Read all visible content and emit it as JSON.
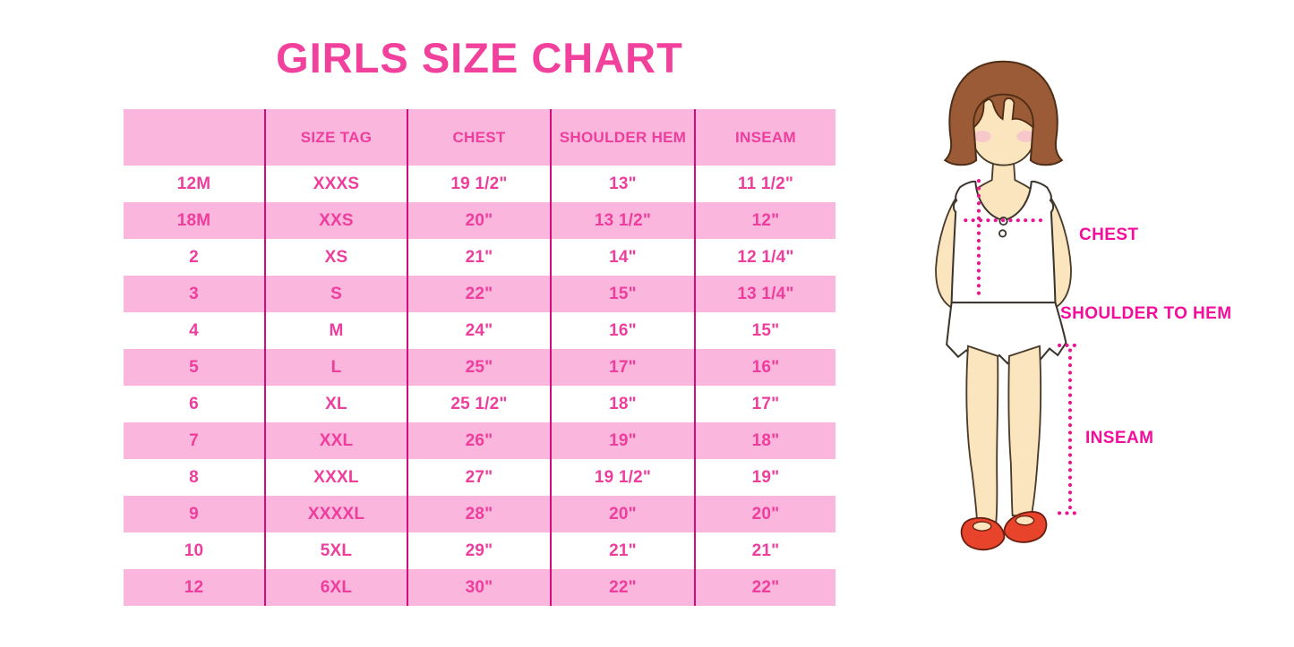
{
  "title": "GIRLS SIZE CHART",
  "colors": {
    "title_pink": "#F2419C",
    "row_pink": "#FAB6DC",
    "cell_text": "#EE3E9D",
    "grid_line": "#D40A7E",
    "label_text": "#F30D9B",
    "dotted_line": "#ED1390",
    "hair_brown": "#9A5B36",
    "skin_tan": "#FBE5BE",
    "shoe_red": "#E8432B"
  },
  "chart_data": {
    "type": "table",
    "title": "GIRLS SIZE CHART",
    "columns": [
      "",
      "SIZE TAG",
      "CHEST",
      "SHOULDER HEM",
      "INSEAM"
    ],
    "rows": [
      [
        "12M",
        "XXXS",
        "19 1/2\"",
        "13\"",
        "11 1/2\""
      ],
      [
        "18M",
        "XXS",
        "20\"",
        "13 1/2\"",
        "12\""
      ],
      [
        "2",
        "XS",
        "21\"",
        "14\"",
        "12 1/4\""
      ],
      [
        "3",
        "S",
        "22\"",
        "15\"",
        "13 1/4\""
      ],
      [
        "4",
        "M",
        "24\"",
        "16\"",
        "15\""
      ],
      [
        "5",
        "L",
        "25\"",
        "17\"",
        "16\""
      ],
      [
        "6",
        "XL",
        "25 1/2\"",
        "18\"",
        "17\""
      ],
      [
        "7",
        "XXL",
        "26\"",
        "19\"",
        "18\""
      ],
      [
        "8",
        "XXXL",
        "27\"",
        "19 1/2\"",
        "19\""
      ],
      [
        "9",
        "XXXXL",
        "28\"",
        "20\"",
        "20\""
      ],
      [
        "10",
        "5XL",
        "29\"",
        "21\"",
        "21\""
      ],
      [
        "12",
        "6XL",
        "30\"",
        "22\"",
        "22\""
      ]
    ],
    "layout": {
      "stripe_pattern": "white/pink alternating, header pink",
      "grid": "vertical magenta dividers only"
    }
  },
  "figure": {
    "labels": {
      "chest": "CHEST",
      "shoulder_to_hem": "SHOULDER TO HEM",
      "inseam": "INSEAM"
    }
  }
}
